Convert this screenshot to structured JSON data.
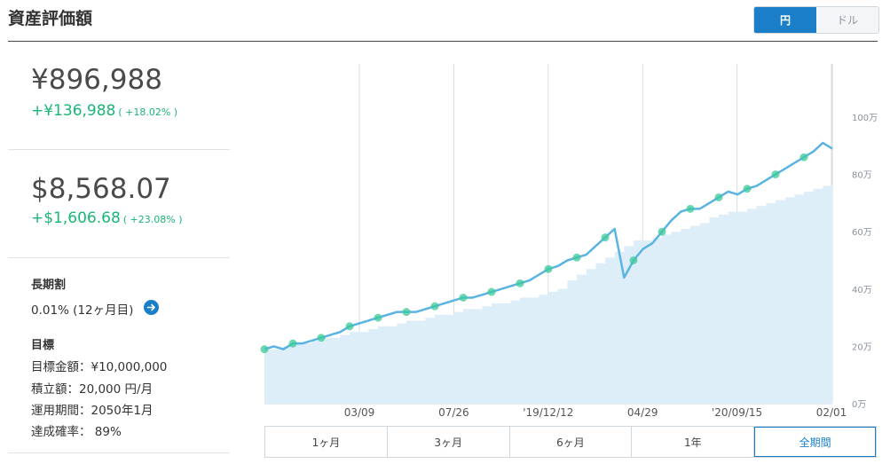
{
  "header": {
    "title": "資産評価額"
  },
  "currency_toggle": {
    "yen_label": "円",
    "dollar_label": "ドル",
    "selected": "円"
  },
  "summary": {
    "yen_value": "¥896,988",
    "yen_gain": "+¥136,988",
    "yen_gain_pct": "( +18.02% )",
    "usd_value": "$8,568.07",
    "usd_gain": "+$1,606.68",
    "usd_gain_pct": "( +23.08% )"
  },
  "long_term_discount": {
    "label": "長期割",
    "value": "0.01% (12ヶ月目)"
  },
  "goal": {
    "label": "目標",
    "target_amount": "目標金額：¥10,000,000",
    "contribution": "積立額：20,000 円/月",
    "period": "運用期間：2050年1月",
    "probability": "達成確率： 89%"
  },
  "range_buttons": [
    "1ヶ月",
    "3ヶ月",
    "6ヶ月",
    "1年",
    "全期間"
  ],
  "range_selected": "全期間",
  "colors": {
    "accent": "#1a7fc8",
    "gain": "#19b676",
    "line": "#5ab4e3",
    "area": "#deeef8",
    "dot": "#3cc99a"
  },
  "chart_data": {
    "type": "line",
    "x_tick_labels": [
      "03/09",
      "07/26",
      "'19/12/12",
      "04/29",
      "'20/09/15",
      "02/01"
    ],
    "y_tick_labels": [
      "0万",
      "20万",
      "40万",
      "60万",
      "80万",
      "100万"
    ],
    "ylim": [
      0,
      100
    ],
    "grid": "vertical",
    "series": [
      {
        "values": [
          19,
          20,
          19,
          21,
          21,
          22,
          23,
          24,
          25,
          27,
          28,
          29,
          30,
          31,
          32,
          32,
          32,
          33,
          34,
          35,
          36,
          37,
          37,
          38,
          39,
          40,
          41,
          42,
          43,
          45,
          47,
          48,
          50,
          51,
          52,
          55,
          58,
          61,
          44,
          50,
          54,
          56,
          60,
          64,
          67,
          68,
          68,
          70,
          72,
          74,
          73,
          75,
          76,
          78,
          80,
          82,
          84,
          86,
          88,
          91,
          89
        ]
      },
      {
        "values": [
          19,
          19,
          20,
          21,
          21,
          22,
          23,
          23,
          24,
          25,
          25,
          26,
          27,
          27,
          28,
          29,
          29,
          30,
          31,
          31,
          32,
          33,
          33,
          34,
          35,
          35,
          36,
          37,
          37,
          38,
          39,
          40,
          43,
          45,
          47,
          49,
          51,
          53,
          55,
          57,
          57,
          58,
          59,
          60,
          61,
          62,
          63,
          65,
          66,
          67,
          67,
          68,
          69,
          70,
          71,
          72,
          73,
          74,
          75,
          76,
          77
        ]
      }
    ],
    "unit": "万円"
  }
}
